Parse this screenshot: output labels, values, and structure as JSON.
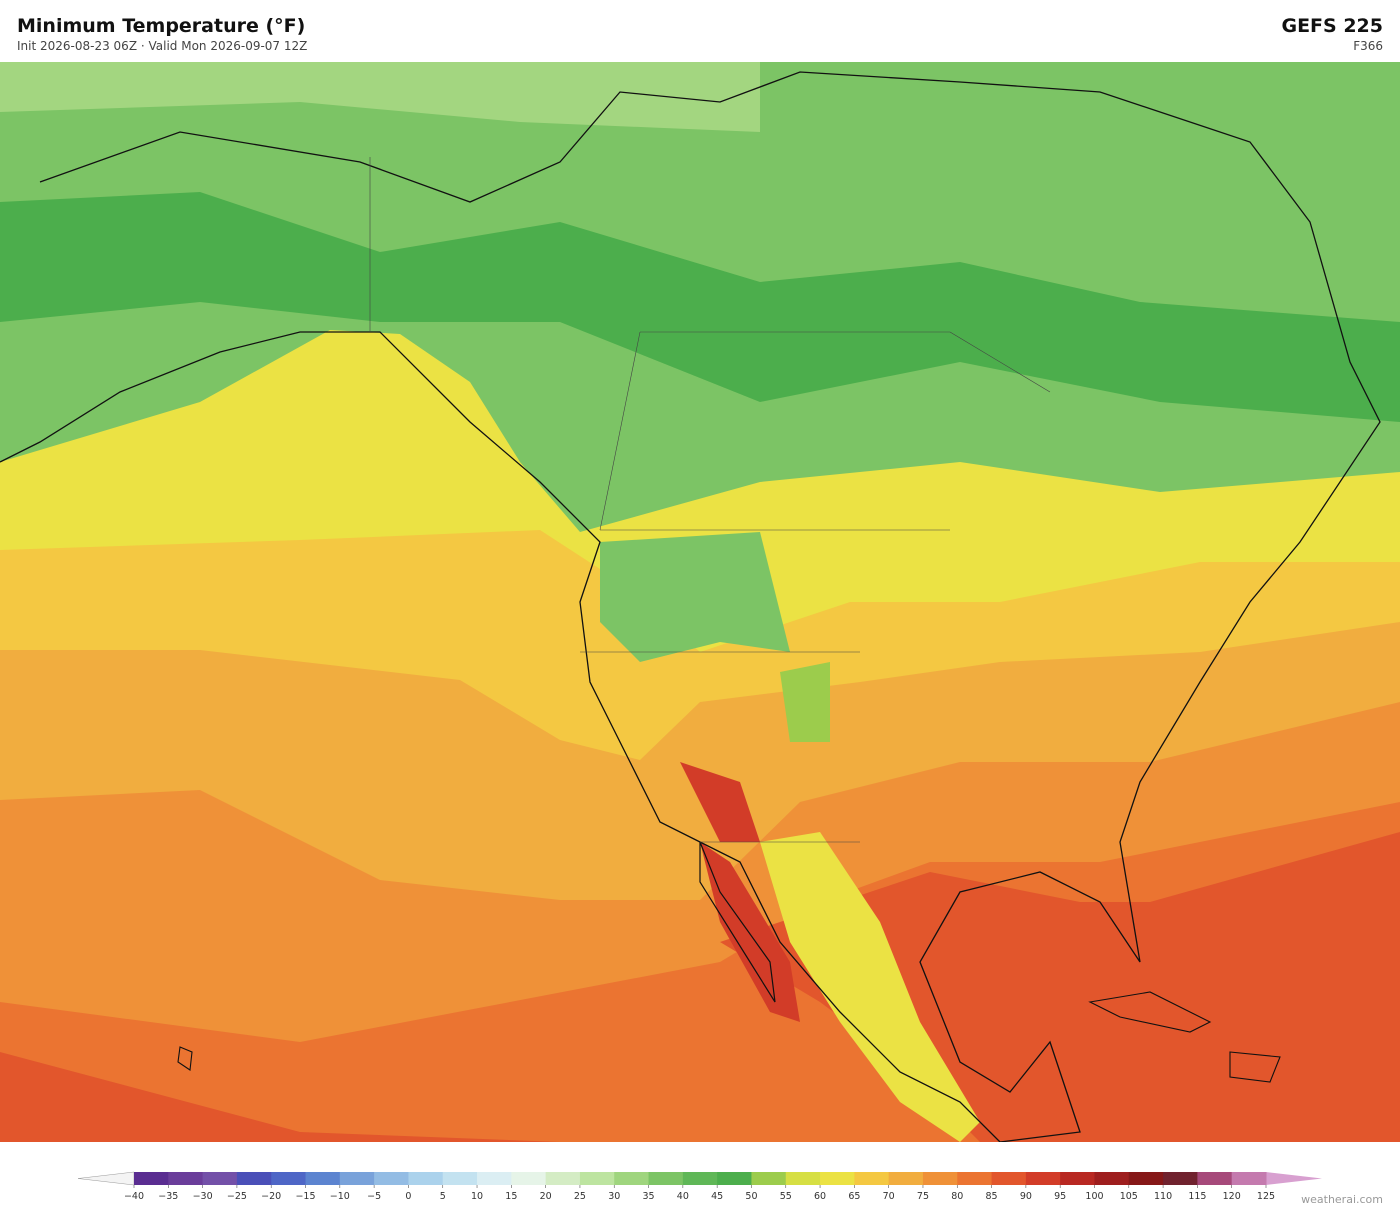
{
  "header": {
    "title": "Minimum Temperature  (°F)",
    "subtitle": "Init 2026-08-23 06Z   ·   Valid Mon 2026-09-07 12Z",
    "model": "GEFS  225",
    "forecast_hour": "F366"
  },
  "colorbar": {
    "labels": [
      "−40",
      "−35",
      "−30",
      "−25",
      "−20",
      "−15",
      "−10",
      "−5",
      "0",
      "5",
      "10",
      "15",
      "20",
      "25",
      "30",
      "35",
      "40",
      "45",
      "50",
      "55",
      "60",
      "65",
      "70",
      "75",
      "80",
      "85",
      "90",
      "95",
      "100",
      "105",
      "110",
      "115",
      "120",
      "125"
    ],
    "colors": [
      "#5a2d91",
      "#6a3d9a",
      "#7350a8",
      "#4a4fb8",
      "#4e66c6",
      "#5c84d0",
      "#79a2da",
      "#93bce4",
      "#abd2ec",
      "#c3e2f0",
      "#dbeef3",
      "#e6f4e8",
      "#d4ecc4",
      "#bde4a0",
      "#9fd57e",
      "#7cc465",
      "#5fb757",
      "#4cae4c",
      "#9ccc4c",
      "#d6df44",
      "#ebe244",
      "#f4c842",
      "#f1ad3f",
      "#ef9138",
      "#eb7431",
      "#e2562c",
      "#d23c28",
      "#b82822",
      "#9e1e1e",
      "#861818",
      "#70222e",
      "#a6497a",
      "#c47aae"
    ],
    "under_color": "#f4f4f4",
    "over_color": "#d8a0d0"
  },
  "footer": {
    "brand": "weatherai.com"
  }
}
